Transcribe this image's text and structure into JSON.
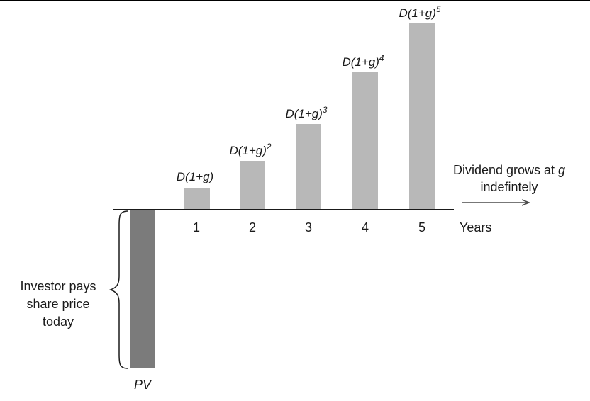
{
  "diagram": {
    "bars": [
      {
        "year": "1",
        "label_base": "D(1+g)",
        "label_exp": ""
      },
      {
        "year": "2",
        "label_base": "D(1+g)",
        "label_exp": "2"
      },
      {
        "year": "3",
        "label_base": "D(1+g)",
        "label_exp": "3"
      },
      {
        "year": "4",
        "label_base": "D(1+g)",
        "label_exp": "4"
      },
      {
        "year": "5",
        "label_base": "D(1+g)",
        "label_exp": "5"
      }
    ],
    "x_axis_label": "Years",
    "growth_note": {
      "line1": "Dividend grows at ",
      "line1_var": "g",
      "line2": "indefintely"
    },
    "investor_note": {
      "line1": "Investor pays",
      "line2": "share price",
      "line3": "today"
    },
    "pv_label": "PV",
    "colors": {
      "dividend_bar": "#b8b8b8",
      "pv_bar": "#7b7b7b",
      "axis": "#1a1a1a",
      "border": "#000000"
    }
  }
}
